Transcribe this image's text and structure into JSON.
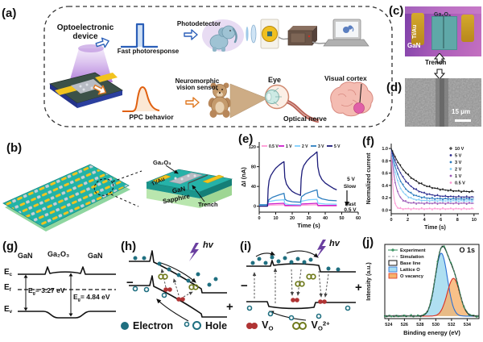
{
  "colors": {
    "electron": "#1f6f80",
    "hole_ring": "#1f6f80",
    "vo": "#b03434",
    "vo2": "#6f7a1c",
    "accent_blue": "#2b5fb8",
    "accent_orange": "#e07820",
    "panel_c_bg": "#9b59b6",
    "gold": "#d4a92c",
    "teal_film": "#5fa8a8"
  },
  "panels": {
    "a": {
      "label": "(a)",
      "device_l1": "Optoelectronic",
      "device_l2": "device",
      "fast": "Fast photoresponse",
      "photodetector": "Photodetector",
      "ppc": "PPC behavior",
      "neuro_l1": "Neuromorphic",
      "neuro_l2": "vision sensor",
      "eye": "Eye",
      "optical_nerve": "Optical nerve",
      "visual_cortex": "Visual cortex"
    },
    "b": {
      "label": "(b)",
      "ga2o3": "Ga₂O₃",
      "tiau": "Ti/Au",
      "gan": "GaN",
      "sapphire": "Sapphire",
      "trench": "Trench"
    },
    "c": {
      "label": "(c)",
      "tiau": "Ti/Au",
      "ga2o3": "Ga₂O₃",
      "gan": "GaN",
      "trench": "Trench"
    },
    "d": {
      "label": "(d)",
      "scalebar": "15 μm"
    },
    "e": {
      "label": "(e)"
    },
    "f": {
      "label": "(f)"
    },
    "g": {
      "label": "(g)",
      "gan_left": "GaN",
      "ga2o3": "Ga₂O₃",
      "gan_right": "GaN",
      "e": "E",
      "sub_c": "c",
      "sub_f": "f",
      "sub_v": "v",
      "sub_g": "g",
      "eg1": "= 3.27 eV",
      "eg2": "= 4.84 eV"
    },
    "h": {
      "label": "(h)",
      "hv": "hv",
      "minus": "−",
      "plus": "+"
    },
    "i": {
      "label": "(i)",
      "hv": "hv",
      "minus": "−",
      "plus": "+"
    },
    "j": {
      "label": "(j)"
    }
  },
  "legend": {
    "electron": "Electron",
    "hole": "Hole",
    "v": "V",
    "o_sub": "O",
    "sup2": "2+"
  },
  "chart_data": [
    {
      "id": "e",
      "type": "line",
      "xlabel": "Time (s)",
      "ylabel": "ΔI (nA)",
      "xlim": [
        0,
        60
      ],
      "ylim": [
        -12,
        130
      ],
      "xticks": [
        0,
        10,
        20,
        30,
        40,
        50,
        60
      ],
      "yticks": [
        0,
        40,
        80,
        120
      ],
      "annotations": {
        "top_v": "5 V",
        "slow": "Slow",
        "fast": "Fast",
        "bottom_v": "0.5 V"
      },
      "series": [
        {
          "name": "0.5 V",
          "color": "#ff9ad5",
          "points": [
            [
              0,
              0
            ],
            [
              5,
              0
            ],
            [
              5.5,
              2
            ],
            [
              15,
              3
            ],
            [
              15.6,
              0.5
            ],
            [
              25,
              0.5
            ],
            [
              25.5,
              2
            ],
            [
              35,
              3
            ],
            [
              35.6,
              0.5
            ],
            [
              47,
              0.5
            ]
          ]
        },
        {
          "name": "1 V",
          "color": "#cc1fcc",
          "points": [
            [
              0,
              1
            ],
            [
              5,
              1
            ],
            [
              5.5,
              4.5
            ],
            [
              15,
              6
            ],
            [
              15.6,
              1.5
            ],
            [
              25,
              1.5
            ],
            [
              25.5,
              4.5
            ],
            [
              35,
              6
            ],
            [
              35.6,
              1.5
            ],
            [
              47,
              1.5
            ]
          ]
        },
        {
          "name": "2 V",
          "color": "#7fd0ff",
          "points": [
            [
              0,
              2
            ],
            [
              5,
              2
            ],
            [
              5.5,
              9
            ],
            [
              10,
              12
            ],
            [
              15,
              13
            ],
            [
              15.6,
              5
            ],
            [
              18,
              3.5
            ],
            [
              25,
              3
            ],
            [
              25.5,
              10
            ],
            [
              30,
              13
            ],
            [
              35,
              14
            ],
            [
              35.6,
              6
            ],
            [
              40,
              4.5
            ],
            [
              47,
              4
            ]
          ]
        },
        {
          "name": "3 V",
          "color": "#2e7fc0",
          "points": [
            [
              0,
              3
            ],
            [
              5,
              3
            ],
            [
              5.8,
              13
            ],
            [
              8,
              18
            ],
            [
              12,
              23
            ],
            [
              15,
              26
            ],
            [
              15.6,
              14
            ],
            [
              17,
              11
            ],
            [
              20,
              9
            ],
            [
              25,
              8
            ],
            [
              25.6,
              19
            ],
            [
              28,
              25
            ],
            [
              32,
              30
            ],
            [
              35,
              33
            ],
            [
              35.6,
              19
            ],
            [
              38,
              15
            ],
            [
              42,
              12
            ],
            [
              47,
              11
            ]
          ]
        },
        {
          "name": "5 V",
          "color": "#1c1c7a",
          "points": [
            [
              0,
              0
            ],
            [
              5,
              0
            ],
            [
              5.4,
              35
            ],
            [
              6,
              52
            ],
            [
              7,
              62
            ],
            [
              8.5,
              70
            ],
            [
              10,
              77
            ],
            [
              12,
              83
            ],
            [
              14,
              88
            ],
            [
              15,
              90
            ],
            [
              15.5,
              58
            ],
            [
              16.5,
              45
            ],
            [
              18,
              37
            ],
            [
              20,
              30
            ],
            [
              22,
              26
            ],
            [
              25,
              22
            ],
            [
              25.4,
              55
            ],
            [
              26,
              72
            ],
            [
              27,
              82
            ],
            [
              29,
              92
            ],
            [
              31,
              99
            ],
            [
              33,
              104
            ],
            [
              35,
              110
            ],
            [
              35.5,
              80
            ],
            [
              36.5,
              64
            ],
            [
              38,
              54
            ],
            [
              40,
              47
            ],
            [
              43,
              40
            ],
            [
              45,
              36
            ],
            [
              47,
              33
            ]
          ]
        }
      ]
    },
    {
      "id": "f",
      "type": "scatter",
      "xlabel": "Time (s)",
      "ylabel": "Normalized current",
      "xlim": [
        0,
        10.6
      ],
      "ylim": [
        -0.06,
        1.08
      ],
      "xticks": [
        0,
        2,
        4,
        6,
        8,
        10
      ],
      "yticks": [
        0.0,
        0.2,
        0.4,
        0.6,
        0.8,
        1.0
      ],
      "decay_model": "y = end + (1 - end) * exp(-t / tau)",
      "series": [
        {
          "name": "10 V",
          "color": "#1a1a1a",
          "end": 0.29,
          "tau": 2.2
        },
        {
          "name": "5 V",
          "color": "#2c2c8e",
          "end": 0.21,
          "tau": 1.6
        },
        {
          "name": "3 V",
          "color": "#2b7bbf",
          "end": 0.18,
          "tau": 1.1
        },
        {
          "name": "2 V",
          "color": "#85cdf5",
          "end": 0.15,
          "tau": 0.8
        },
        {
          "name": "1 V",
          "color": "#9b59b6",
          "end": 0.11,
          "tau": 0.5
        },
        {
          "name": "0.5 V",
          "color": "#ff9ad5",
          "end": 0.02,
          "tau": 0.2
        }
      ]
    },
    {
      "id": "j",
      "type": "xps",
      "title": "O 1s",
      "xlabel": "Binding energy (eV)",
      "ylabel": "Intensity (a.u.)",
      "xlim": [
        523.5,
        535.5
      ],
      "ylim": [
        0,
        1.18
      ],
      "xticks": [
        524,
        526,
        528,
        530,
        532,
        534
      ],
      "legend": [
        "Experiment",
        "Simulation",
        "Base line",
        "Lattice O",
        "O vacancy"
      ],
      "baseline": 0.04,
      "peaks": [
        {
          "name": "Lattice O",
          "center": 530.7,
          "sigma": 0.78,
          "amp": 1.0,
          "fill": "#a6dcf0",
          "stroke": "#2b6fd4"
        },
        {
          "name": "O vacancy",
          "center": 532.25,
          "sigma": 0.8,
          "amp": 0.6,
          "fill": "#f6b26b",
          "stroke": "#d93025"
        }
      ],
      "experiment_color": "#2e8b57",
      "simulation_color": "#9aa0a6",
      "baseline_color": "#111111"
    }
  ]
}
